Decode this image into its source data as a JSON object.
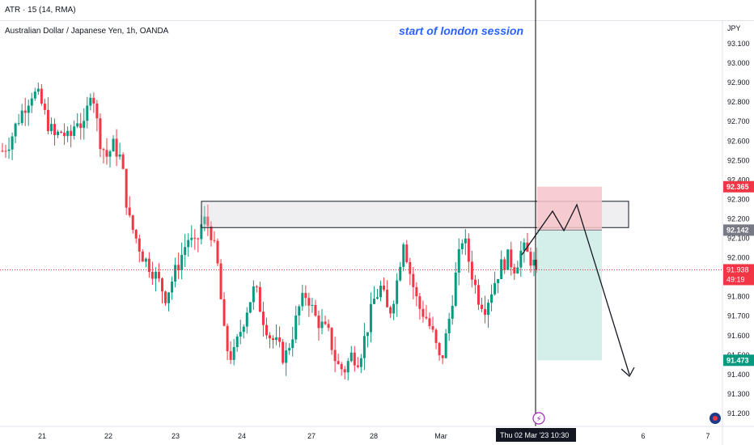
{
  "indicator_label": "ATR · 15 (14, RMA)",
  "symbol_title": "Australian Dollar / Japanese Yen, 1h, OANDA",
  "annotation": "start of london session",
  "currency": "JPY",
  "chart_data": {
    "type": "candlestick",
    "ylim": [
      91.15,
      93.18
    ],
    "y_ticks": [
      "93.100",
      "93.000",
      "92.900",
      "92.800",
      "92.700",
      "92.600",
      "92.500",
      "92.400",
      "92.300",
      "92.200",
      "92.100",
      "92.000",
      "91.900",
      "91.800",
      "91.700",
      "91.600",
      "91.500",
      "91.400",
      "91.300",
      "91.200"
    ],
    "x_ticks": [
      "21",
      "22",
      "23",
      "24",
      "27",
      "28",
      "Mar",
      "6",
      "7"
    ],
    "crosshair_time_label": "Thu 02 Mar '23",
    "crosshair_time": "10:30",
    "price_labels": {
      "take_profit": "92.365",
      "entry": "92.142",
      "current": "91.938",
      "countdown": "49:19",
      "stop": "91.473"
    },
    "colors": {
      "up": "#089981",
      "down": "#f23645",
      "tp_zone": "#f7c4ca",
      "sl_zone": "#cdece6",
      "crosshair": "#000000"
    },
    "zone_box": {
      "y_top": 92.29,
      "y_bottom": 92.155
    },
    "close_path": [
      92.55,
      92.6,
      92.7,
      92.78,
      92.85,
      92.82,
      92.7,
      92.62,
      92.65,
      92.6,
      92.72,
      92.66,
      92.9,
      92.62,
      92.52,
      92.58,
      92.5,
      92.2,
      92.1,
      92.0,
      91.95,
      91.88,
      91.8,
      91.9,
      92.0,
      92.1,
      92.05,
      92.2,
      92.15,
      91.95,
      91.55,
      91.48,
      91.62,
      91.75,
      91.85,
      91.7,
      91.6,
      91.55,
      91.48,
      91.6,
      91.75,
      91.82,
      91.7,
      91.65,
      91.6,
      91.45,
      91.42,
      91.5,
      91.48,
      91.62,
      91.78,
      91.85,
      91.7,
      91.85,
      92.1,
      91.9,
      91.75,
      91.7,
      91.6,
      91.45,
      91.65,
      91.9,
      92.12,
      91.95,
      91.8,
      91.75,
      91.85,
      91.95,
      92.0,
      91.95,
      92.05,
      92.0,
      91.94
    ]
  }
}
